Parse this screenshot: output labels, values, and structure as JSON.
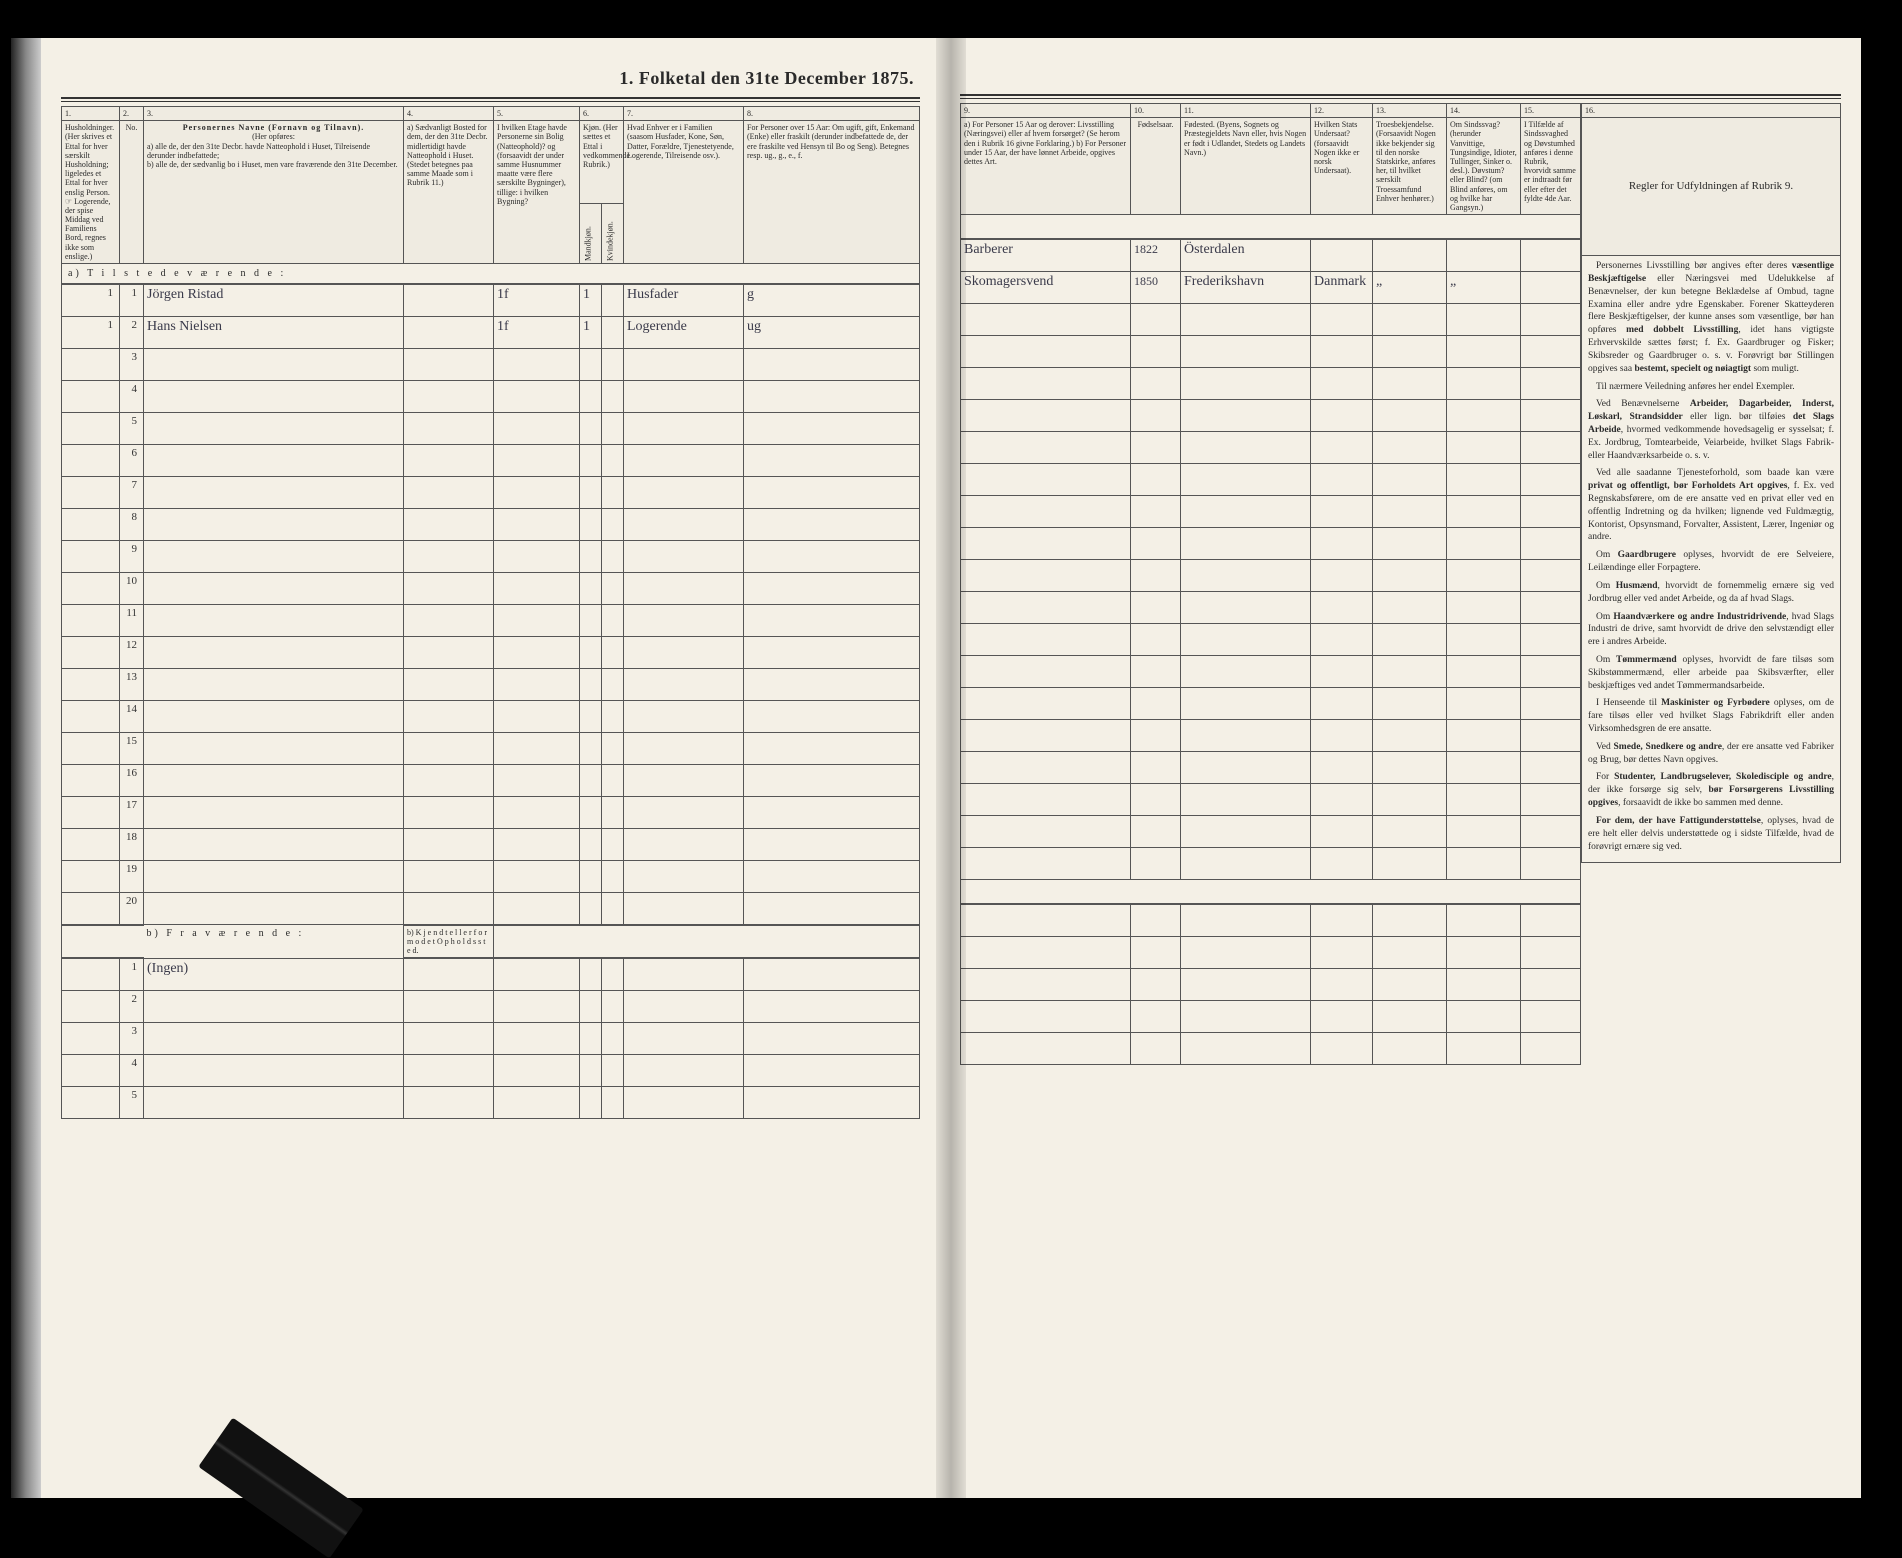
{
  "title": "1.  Folketal den 31te December 1875.",
  "columns_left": {
    "c1": "1.",
    "c2": "2.",
    "c3": "3.",
    "c4": "4.",
    "c5": "5.",
    "c6": "6.",
    "c7": "7.",
    "c8": "8."
  },
  "columns_right": {
    "c9": "9.",
    "c10": "10.",
    "c11": "11.",
    "c12": "12.",
    "c13": "13.",
    "c14": "14.",
    "c15": "15.",
    "c16": "16."
  },
  "headers_left": {
    "h1": "Husholdninger. (Her skrives et Ettal for hver særskilt Husholdning; ligeledes et Ettal for hver enslig Person. ☞ Logerende, der spise Middag ved Familiens Bord, regnes ikke som enslige.)",
    "h2": "No.",
    "h3_title": "Personernes Navne (Fornavn og Tilnavn).",
    "h3_sub": "(Her opføres:",
    "h3_a": "a) alle de, der den 31te Decbr. havde Natteophold i Huset, Tilreisende derunder indbefattede;",
    "h3_b": "b) alle de, der sædvanlig bo i Huset, men vare fraværende den 31te December.",
    "h4": "a) Sædvanligt Bosted for dem, der den 31te Decbr. midlertidigt havde Natteophold i Huset. (Stedet betegnes paa samme Maade som i Rubrik 11.)",
    "h5": "I hvilken Etage havde Personerne sin Bolig (Natteophold)? og (forsaavidt der under samme Husnummer maatte være flere særskilte Bygninger), tillige: i hvilken Bygning?",
    "h6": "Kjøn. (Her sættes et Ettal i vedkommende Rubrik.)",
    "h6a": "Mandkjøn.",
    "h6b": "Kvindekjøn.",
    "h7": "Hvad Enhver er i Familien (saasom Husfader, Kone, Søn, Datter, Forældre, Tjenestetyende, Logerende, Tilreisende osv.).",
    "h8": "For Personer over 15 Aar: Om ugift, gift, Enkemand (Enke) eller fraskilt (derunder indbefattede de, der ere fraskilte ved Hensyn til Bo og Seng). Betegnes resp. ug., g., e., f."
  },
  "headers_right": {
    "h9": "a) For Personer 15 Aar og derover: Livsstilling (Næringsvei) eller af hvem forsørget? (Se herom den i Rubrik 16 givne Forklaring.)  b) For Personer under 15 Aar, der have lønnet Arbeide, opgives dettes Art.",
    "h10": "Fødselsaar.",
    "h11": "Fødested. (Byens, Sognets og Præstegjeldets Navn eller, hvis Nogen er født i Udlandet, Stedets og Landets Navn.)",
    "h12": "Hvilken Stats Undersaat? (forsaavidt Nogen ikke er norsk Undersaat).",
    "h13": "Troesbekjendelse. (Forsaavidt Nogen ikke bekjender sig til den norske Statskirke, anføres her, til hvilket særskilt Troessamfund Enhver henhører.)",
    "h14": "Om Sindssvag? (herunder Vanvittige, Tungsindige, Idioter, Tullinger, Sinker o. desl.). Døvstum? eller Blind? (om Blind anføres, om og hvilke har Gangsyn.)",
    "h15": "I Tilfælde af Sindssvaghed og Døvstumhed anføres i denne Rubrik, hvorvidt samme er indtraadt før eller efter det fyldte 4de Aar.",
    "h16": "Regler for Udfyldningen af Rubrik 9."
  },
  "section_a": "a)  T i l s t e d e v æ r e n d e :",
  "section_b": "b)  F r a v æ r e n d e :",
  "section_b_note": "b)  K j e n d t  e l l e r  f o r m o d e t  O p h o l d s s t e d.",
  "entries": [
    {
      "hus": "1",
      "no": "1",
      "name": "Jörgen Ristad",
      "c4": "",
      "c5": "1f",
      "c6a": "1",
      "c6b": "",
      "c7": "Husfader",
      "c8": "g",
      "c9": "Barberer",
      "c10": "1822",
      "c11": "Österdalen",
      "c12": "",
      "c13": "",
      "c14": "",
      "c15": ""
    },
    {
      "hus": "1",
      "no": "2",
      "name": "Hans Nielsen",
      "c4": "",
      "c5": "1f",
      "c6a": "1",
      "c6b": "",
      "c7": "Logerende",
      "c8": "ug",
      "c9": "Skomagersvend",
      "c10": "1850",
      "c11": "Frederikshavn",
      "c12": "Danmark",
      "c13": "„",
      "c14": "„",
      "c15": ""
    }
  ],
  "b_entry": "(Ingen)",
  "row_numbers": [
    "1",
    "2",
    "3",
    "4",
    "5",
    "6",
    "7",
    "8",
    "9",
    "10",
    "11",
    "12",
    "13",
    "14",
    "15",
    "16",
    "17",
    "18",
    "19",
    "20"
  ],
  "b_row_numbers": [
    "1",
    "2",
    "3",
    "4",
    "5"
  ],
  "side_paragraphs": [
    "Personernes Livsstilling bør angives efter deres <b>væsentlige Beskjæftigelse</b> eller Næringsvei med Udelukkelse af Benævnelser, der kun betegne Beklædelse af Ombud, tagne Examina eller andre ydre Egenskaber. Forener Skatteyderen flere Beskjæftigelser, der kunne anses som væsentlige, bør han opføres <b>med dobbelt Livsstilling</b>, idet hans vigtigste Erhvervskilde sættes først; f. Ex. Gaardbruger og Fisker; Skibsreder og Gaardbruger o. s. v. Forøvrigt bør Stillingen opgives saa <b>bestemt, specielt og nøiagtigt</b> som muligt.",
    "Til nærmere Veiledning anføres her endel Exempler.",
    "Ved Benævnelserne <b>Arbeider, Dagarbeider, Inderst, Løskarl, Strandsidder</b> eller lign. bør tilføies <b>det Slags Arbeide</b>, hvormed vedkommende hovedsagelig er sysselsat; f. Ex. Jordbrug, Tomtearbeide, Veiarbeide, hvilket Slags Fabrik- eller Haandværksarbeide o. s. v.",
    "Ved alle saadanne Tjenesteforhold, som baade kan være <b>privat og offentligt, bør Forholdets Art opgives</b>, f. Ex. ved Regnskabsførere, om de ere ansatte ved en privat eller ved en offentlig Indretning og da hvilken; lignende ved Fuldmægtig, Kontorist, Opsynsmand, Forvalter, Assistent, Lærer, Ingeniør og andre.",
    "Om <b>Gaardbrugere</b> oplyses, hvorvidt de ere Selveiere, Leilændinge eller Forpagtere.",
    "Om <b>Husmænd</b>, hvorvidt de fornemmelig ernære sig ved Jordbrug eller ved andet Arbeide, og da af hvad Slags.",
    "Om <b>Haandværkere og andre Industridrivende</b>, hvad Slags Industri de drive, samt hvorvidt de drive den selvstændigt eller ere i andres Arbeide.",
    "Om <b>Tømmermænd</b> oplyses, hvorvidt de fare tilsøs som Skibstømmermænd, eller arbeide paa Skibsværfter, eller beskjæftiges ved andet Tømmermandsarbeide.",
    "I Henseende til <b>Maskinister og Fyrbødere</b> oplyses, om de fare tilsøs eller ved hvilket Slags Fabrikdrift eller anden Virksomhedsgren de ere ansatte.",
    "Ved <b>Smede, Snedkere og andre</b>, der ere ansatte ved Fabriker og Brug, bør dettes Navn opgives.",
    "For <b>Studenter, Landbrugselever, Skoledisciple og andre</b>, der ikke forsørge sig selv, <b>bør Forsørgerens Livsstilling opgives</b>, forsaavidt de ikke bo sammen med denne.",
    "<b>For dem, der have Fattigunderstøttelse</b>, oplyses, hvad de ere helt eller delvis understøttede og i sidste Tilfælde, hvad de forøvrigt ernære sig ved."
  ]
}
